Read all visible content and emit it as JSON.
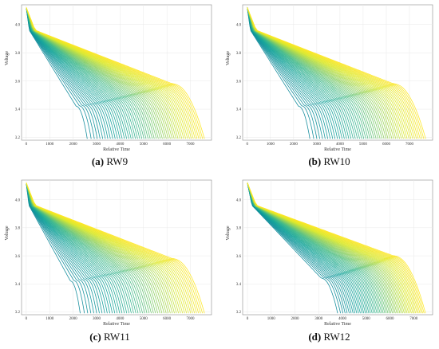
{
  "chart_data": [
    {
      "type": "line",
      "label": "(a)",
      "name": "RW9",
      "xlabel": "Relative Time",
      "ylabel": "Voltage",
      "xticks": [
        0,
        1000,
        2000,
        3000,
        4000,
        5000,
        6000,
        7000
      ],
      "yticks": [
        3.2,
        3.4,
        3.6,
        3.8,
        4.0
      ],
      "xlim": [
        -200,
        7900
      ],
      "ylim": [
        3.18,
        4.14
      ],
      "grid": true,
      "colormap": [
        "#0f8a9b",
        "#12a39a",
        "#3db88a",
        "#8fd05c",
        "#d9e82c",
        "#fde725"
      ],
      "curve_count": 55,
      "end_time_range": [
        2600,
        7600
      ],
      "knee_voltage_range": [
        3.42,
        3.58
      ]
    },
    {
      "type": "line",
      "label": "(b)",
      "name": "RW10",
      "xlabel": "Relative Time",
      "ylabel": "Voltage",
      "xticks": [
        0,
        1000,
        2000,
        3000,
        4000,
        5000,
        6000,
        7000
      ],
      "yticks": [
        3.2,
        3.4,
        3.6,
        3.8,
        4.0
      ],
      "xlim": [
        -200,
        8000
      ],
      "ylim": [
        3.18,
        4.14
      ],
      "grid": true,
      "colormap": [
        "#0f8a9b",
        "#12a39a",
        "#3db88a",
        "#8fd05c",
        "#d9e82c",
        "#fde725"
      ],
      "curve_count": 55,
      "end_time_range": [
        2700,
        7700
      ],
      "knee_voltage_range": [
        3.42,
        3.58
      ]
    },
    {
      "type": "line",
      "label": "(c)",
      "name": "RW11",
      "xlabel": "Relative Time",
      "ylabel": "Voltage",
      "xticks": [
        0,
        1000,
        2000,
        3000,
        4000,
        5000,
        6000,
        7000
      ],
      "yticks": [
        3.2,
        3.4,
        3.6,
        3.8,
        4.0
      ],
      "xlim": [
        -200,
        7900
      ],
      "ylim": [
        3.18,
        4.14
      ],
      "grid": true,
      "colormap": [
        "#0f8a9b",
        "#12a39a",
        "#3db88a",
        "#8fd05c",
        "#d9e82c",
        "#fde725"
      ],
      "curve_count": 55,
      "end_time_range": [
        2300,
        7600
      ],
      "knee_voltage_range": [
        3.42,
        3.58
      ]
    },
    {
      "type": "line",
      "label": "(d)",
      "name": "RW12",
      "xlabel": "Relative Time",
      "ylabel": "Voltage",
      "xticks": [
        0,
        1000,
        2000,
        3000,
        4000,
        5000,
        6000,
        7000
      ],
      "yticks": [
        3.2,
        3.4,
        3.6,
        3.8,
        4.0
      ],
      "xlim": [
        -200,
        7800
      ],
      "ylim": [
        3.18,
        4.14
      ],
      "grid": true,
      "colormap": [
        "#0f8a9b",
        "#12a39a",
        "#3db88a",
        "#8fd05c",
        "#d9e82c",
        "#fde725"
      ],
      "curve_count": 55,
      "end_time_range": [
        3800,
        7500
      ],
      "knee_voltage_range": [
        3.44,
        3.6
      ]
    }
  ]
}
